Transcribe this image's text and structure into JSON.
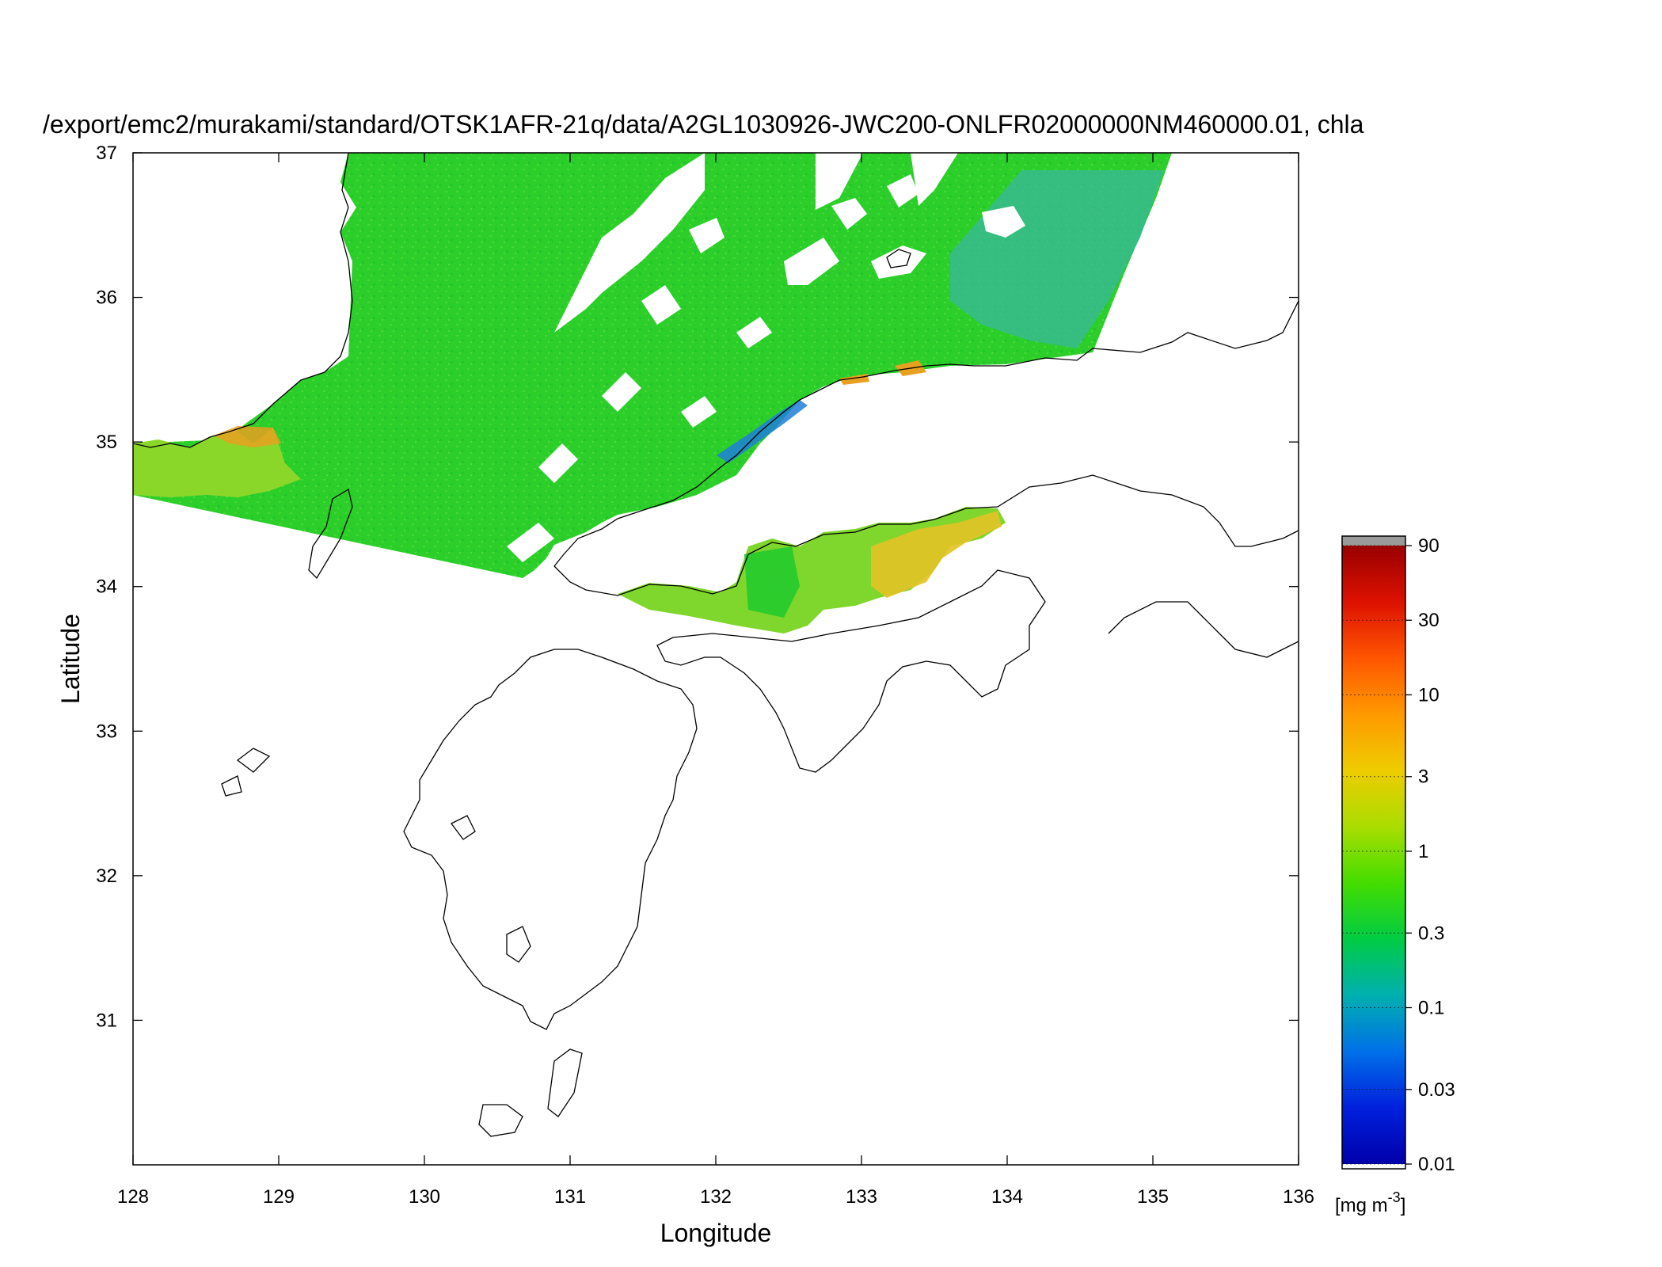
{
  "title": "/export/emc2/murakami/standard/OTSK1AFR-21q/data/A2GL1030926-JWC200-ONLFR02000000NM460000.01, chla",
  "map": {
    "xlabel": "Longitude",
    "ylabel": "Latitude",
    "xlim": [
      128,
      136
    ],
    "ylim": [
      30,
      37
    ],
    "xticks": [
      "128",
      "129",
      "130",
      "131",
      "132",
      "133",
      "134",
      "135",
      "136"
    ],
    "yticks": [
      "37",
      "36",
      "35",
      "34",
      "33",
      "32",
      "31"
    ],
    "ytick_values": [
      37,
      36,
      35,
      34,
      33,
      32,
      31
    ],
    "xtick_values": [
      128,
      129,
      130,
      131,
      132,
      133,
      134,
      135,
      136
    ],
    "variable": "chla",
    "colors": {
      "dominant_field": "#22cc22",
      "coastline": "#000000",
      "land_and_clouds": "#ffffff"
    }
  },
  "colorbar": {
    "unit_label": "[mg m",
    "unit_exponent": "-3",
    "unit_close": "]",
    "scale": "log",
    "range": [
      0.01,
      90
    ],
    "ticks": [
      "90",
      "30",
      "10",
      "3",
      "1",
      "0.3",
      "0.1",
      "0.03",
      "0.01"
    ],
    "tick_values": [
      90,
      30,
      10,
      3,
      1,
      0.3,
      0.1,
      0.03,
      0.01
    ],
    "colormap": [
      "#0000aa",
      "#0020dd",
      "#0070e8",
      "#00b0b0",
      "#00cc44",
      "#44dd00",
      "#aadd00",
      "#eecc00",
      "#ff9900",
      "#ff5500",
      "#dd1100",
      "#990000"
    ],
    "over_color": "#9a9a9a"
  }
}
